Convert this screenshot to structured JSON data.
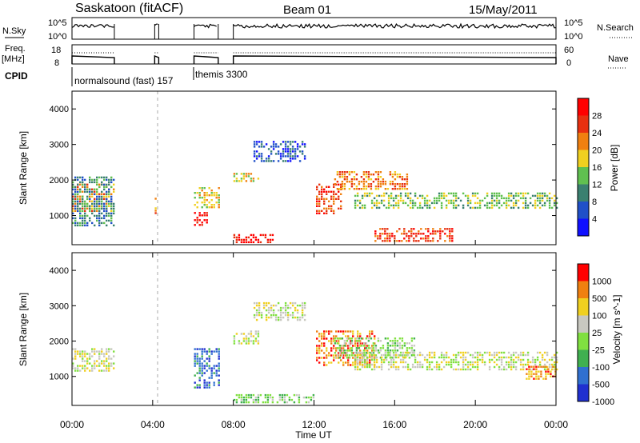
{
  "header": {
    "station": "Saskatoon (fitACF)",
    "beam": "Beam 01",
    "date": "15/May/2011"
  },
  "status_panels": {
    "nsky_label": "N.Sky",
    "nsky_ticks": [
      "10^5",
      "10^0"
    ],
    "nsearch_label": "N.Search",
    "nsearch_ticks": [
      "10^5",
      "10^0"
    ],
    "freq_label": "Freq.",
    "freq_unit": "[MHz]",
    "freq_ticks": [
      "18",
      "8"
    ],
    "nave_label": "Nave",
    "nave_ticks": [
      "60",
      "0"
    ],
    "cpid_label": "CPID",
    "cpid_1": "normalsound (fast) 157",
    "cpid_2": "themis 3300"
  },
  "chart_data": [
    {
      "type": "heatmap",
      "title": "",
      "xlabel": "",
      "ylabel": "Slant Range [km]",
      "xlim": [
        0,
        24
      ],
      "ylim": [
        180,
        4500
      ],
      "y_ticks": [
        "1000",
        "2000",
        "3000",
        "4000"
      ],
      "colorbar": {
        "label": "Power [dB]",
        "ticks": [
          "4",
          "8",
          "12",
          "16",
          "20",
          "24",
          "28"
        ],
        "colors": [
          "#1010ff",
          "#2050c8",
          "#3a8070",
          "#60c050",
          "#f0d020",
          "#f08010",
          "#e83010",
          "#ff0000"
        ]
      },
      "echo_regions": [
        {
          "t": [
            0.0,
            2.1
          ],
          "r": [
            1150,
            1900
          ],
          "level": 5
        },
        {
          "t": [
            0.0,
            2.1
          ],
          "r": [
            700,
            2100
          ],
          "level": 2
        },
        {
          "t": [
            4.1,
            4.2
          ],
          "r": [
            1050,
            1500
          ],
          "level": 5
        },
        {
          "t": [
            6.05,
            6.75
          ],
          "r": [
            700,
            1100
          ],
          "level": 7
        },
        {
          "t": [
            6.05,
            7.25
          ],
          "r": [
            1200,
            1800
          ],
          "level": 4
        },
        {
          "t": [
            8.0,
            10.0
          ],
          "r": [
            250,
            480
          ],
          "level": 7
        },
        {
          "t": [
            8.0,
            9.3
          ],
          "r": [
            1950,
            2200
          ],
          "level": 4
        },
        {
          "t": [
            9.0,
            11.5
          ],
          "r": [
            2500,
            3100
          ],
          "level": 1
        },
        {
          "t": [
            12.1,
            13.4
          ],
          "r": [
            1050,
            1900
          ],
          "level": 6
        },
        {
          "t": [
            13.0,
            16.6
          ],
          "r": [
            1750,
            2250
          ],
          "level": 5
        },
        {
          "t": [
            14.0,
            24.0
          ],
          "r": [
            1200,
            1650
          ],
          "level": 3
        },
        {
          "t": [
            15.0,
            19.0
          ],
          "r": [
            300,
            650
          ],
          "level": 6
        }
      ]
    },
    {
      "type": "heatmap",
      "title": "",
      "xlabel": "Time UT",
      "ylabel": "Slant Range [km]",
      "xlim": [
        0,
        24
      ],
      "ylim": [
        180,
        4500
      ],
      "x_ticks": [
        "00:00",
        "04:00",
        "08:00",
        "12:00",
        "16:00",
        "20:00",
        "00:00"
      ],
      "y_ticks": [
        "1000",
        "2000",
        "3000",
        "4000"
      ],
      "colorbar": {
        "label": "Velocity [m s^-1]",
        "ticks": [
          "1000",
          "500",
          "100",
          "25",
          "-25",
          "-100",
          "-500",
          "-1000"
        ],
        "colors": [
          "#2030d0",
          "#3070d0",
          "#40b050",
          "#80e040",
          "#c8c8c0",
          "#f0d020",
          "#f08010",
          "#ff0000"
        ]
      },
      "echo_regions": [
        {
          "t": [
            0.0,
            2.1
          ],
          "r": [
            1150,
            1800
          ],
          "level": 4
        },
        {
          "t": [
            6.05,
            7.25
          ],
          "r": [
            700,
            1800
          ],
          "level": 1
        },
        {
          "t": [
            8.0,
            9.3
          ],
          "r": [
            1900,
            2300
          ],
          "level": 4
        },
        {
          "t": [
            9.0,
            11.5
          ],
          "r": [
            2600,
            3100
          ],
          "level": 4
        },
        {
          "t": [
            12.1,
            15.0
          ],
          "r": [
            1300,
            2300
          ],
          "level": 6
        },
        {
          "t": [
            13.0,
            17.0
          ],
          "r": [
            1500,
            2100
          ],
          "level": 3
        },
        {
          "t": [
            14.0,
            24.0
          ],
          "r": [
            1200,
            1700
          ],
          "level": 4
        },
        {
          "t": [
            8.0,
            12.0
          ],
          "r": [
            250,
            500
          ],
          "level": 3
        },
        {
          "t": [
            22.5,
            24.0
          ],
          "r": [
            900,
            1300
          ],
          "level": 6
        }
      ]
    }
  ]
}
